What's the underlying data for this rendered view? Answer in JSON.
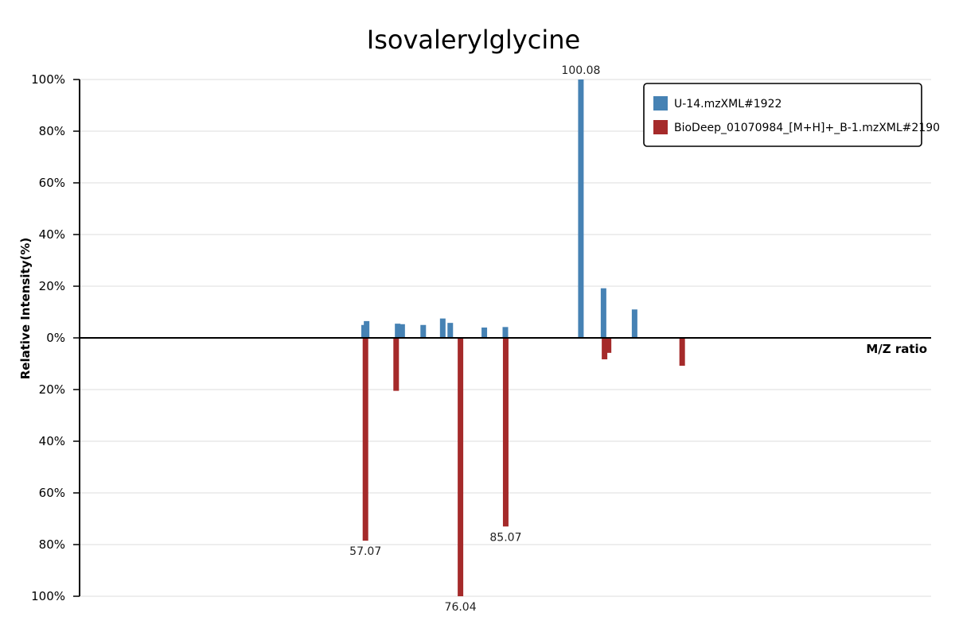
{
  "chart_data": {
    "type": "bar",
    "title": "Isovalerylglycine",
    "xlabel": "M/Z ratio",
    "ylabel": "Relative Intensity(%)",
    "ylim_top": [
      0,
      100
    ],
    "ylim_bottom": [
      0,
      100
    ],
    "xlim": [
      0,
      170
    ],
    "y_ticks_top": [
      "0%",
      "20%",
      "40%",
      "60%",
      "80%",
      "100%"
    ],
    "y_ticks_bottom": [
      "20%",
      "40%",
      "60%",
      "80%",
      "100%"
    ],
    "grid": true,
    "legend_position": "top-right",
    "series": [
      {
        "name": "U-14.mzXML#1922",
        "color": "#4682b4",
        "direction": "up",
        "points": [
          {
            "mz": 56.8,
            "intensity": 5
          },
          {
            "mz": 57.3,
            "intensity": 6.5
          },
          {
            "mz": 63.5,
            "intensity": 5.5
          },
          {
            "mz": 64.4,
            "intensity": 5.3
          },
          {
            "mz": 68.6,
            "intensity": 5
          },
          {
            "mz": 72.5,
            "intensity": 7.5
          },
          {
            "mz": 74.0,
            "intensity": 5.8
          },
          {
            "mz": 80.8,
            "intensity": 4
          },
          {
            "mz": 85.0,
            "intensity": 4.2
          },
          {
            "mz": 100.08,
            "intensity": 100
          },
          {
            "mz": 104.6,
            "intensity": 19.2
          },
          {
            "mz": 110.8,
            "intensity": 11
          }
        ],
        "labels": [
          {
            "mz": 100.08,
            "text": "100.08"
          }
        ]
      },
      {
        "name": "BioDeep_01070984_[M+H]+_B-1.mzXML#2190",
        "color": "#a52a2a",
        "direction": "down",
        "points": [
          {
            "mz": 57.07,
            "intensity": 78.5
          },
          {
            "mz": 63.2,
            "intensity": 20.5
          },
          {
            "mz": 76.04,
            "intensity": 100
          },
          {
            "mz": 85.07,
            "intensity": 73
          },
          {
            "mz": 104.8,
            "intensity": 8.3
          },
          {
            "mz": 105.6,
            "intensity": 5.8
          },
          {
            "mz": 120.3,
            "intensity": 10.8
          }
        ],
        "labels": [
          {
            "mz": 57.07,
            "text": "57.07"
          },
          {
            "mz": 76.04,
            "text": "76.04"
          },
          {
            "mz": 85.07,
            "text": "85.07"
          }
        ]
      }
    ]
  }
}
